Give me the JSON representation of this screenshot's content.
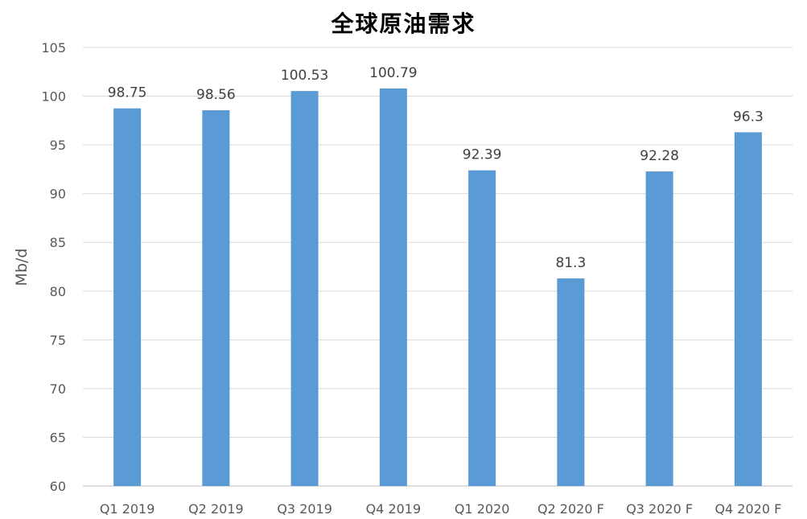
{
  "chart_data": {
    "type": "bar",
    "title": "全球原油需求",
    "ylabel": "Mb/d",
    "xlabel": "",
    "categories": [
      "Q1 2019",
      "Q2 2019",
      "Q3 2019",
      "Q4 2019",
      "Q1 2020",
      "Q2 2020 F",
      "Q3 2020 F",
      "Q4 2020 F"
    ],
    "values": [
      98.75,
      98.56,
      100.53,
      100.79,
      92.39,
      81.3,
      92.28,
      96.3
    ],
    "data_labels": [
      "98.75",
      "98.56",
      "100.53",
      "100.79",
      "92.39",
      "81.3",
      "92.28",
      "96.3"
    ],
    "ylim": [
      60,
      105
    ],
    "yticks": [
      60,
      65,
      70,
      75,
      80,
      85,
      90,
      95,
      100,
      105
    ],
    "grid": true,
    "legend": "none",
    "colors": {
      "bar": "#5b9bd5",
      "grid": "#d9d9d9",
      "text": "#595959"
    }
  }
}
